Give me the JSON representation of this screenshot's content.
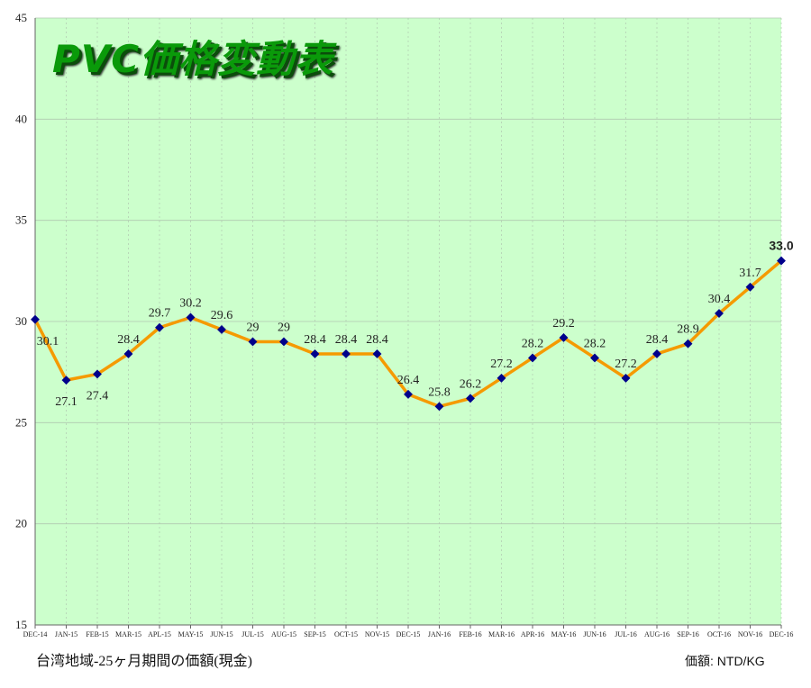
{
  "title": "PVC価格変動表",
  "footer": {
    "period_note": "台湾地域-25ヶ月期間の価額(現金)",
    "unit": "価額: NTD/KG"
  },
  "colors": {
    "plot_background": "#ccffcc",
    "line": "#f59a00",
    "marker": "#00008b",
    "title": "#0a9a0a",
    "grid": "#b0c8b0"
  },
  "chart_data": {
    "type": "line",
    "title": "PVC価格変動表",
    "xlabel": "",
    "ylabel": "",
    "ylim": [
      15,
      45
    ],
    "yticks": [
      15,
      20,
      25,
      30,
      35,
      40,
      45
    ],
    "grid": true,
    "categories": [
      "DEC-14",
      "JAN-15",
      "FEB-15",
      "MAR-15",
      "APL-15",
      "MAY-15",
      "JUN-15",
      "JUL-15",
      "AUG-15",
      "SEP-15",
      "OCT-15",
      "NOV-15",
      "DEC-15",
      "JAN-16",
      "FEB-16",
      "MAR-16",
      "APR-16",
      "MAY-16",
      "JUN-16",
      "JUL-16",
      "AUG-16",
      "SEP-16",
      "OCT-16",
      "NOV-16",
      "DEC-16"
    ],
    "series": [
      {
        "values": [
          30.1,
          27.1,
          27.4,
          28.4,
          29.7,
          30.2,
          29.6,
          29,
          29,
          28.4,
          28.4,
          28.4,
          26.4,
          25.8,
          26.2,
          27.2,
          28.2,
          29.2,
          28.2,
          27.2,
          28.4,
          28.9,
          30.4,
          31.7,
          33.0
        ],
        "labels": [
          "30.1",
          "27.1",
          "27.4",
          "28.4",
          "29.7",
          "30.2",
          "29.6",
          "29",
          "29",
          "28.4",
          "28.4",
          "28.4",
          "26.4",
          "25.8",
          "26.2",
          "27.2",
          "28.2",
          "29.2",
          "28.2",
          "27.2",
          "28.4",
          "28.9",
          "30.4",
          "31.7",
          "33.0"
        ]
      }
    ]
  }
}
